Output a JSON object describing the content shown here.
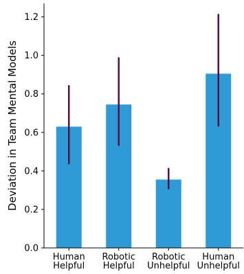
{
  "chart_data": {
    "type": "bar",
    "categories": [
      [
        "Human",
        "Helpful"
      ],
      [
        "Robotic",
        "Helpful"
      ],
      [
        "Robotic",
        "Unhelpful"
      ],
      [
        "Human",
        "Unhelpful"
      ]
    ],
    "values": [
      0.63,
      0.745,
      0.355,
      0.905
    ],
    "error_low": [
      0.435,
      0.53,
      0.305,
      0.63
    ],
    "error_high": [
      0.845,
      0.99,
      0.415,
      1.215
    ],
    "title": "",
    "xlabel": "",
    "ylabel": "Deviation in Team Mental Models",
    "ylim": [
      0,
      1.27
    ],
    "yticks": [
      0.0,
      0.2,
      0.4,
      0.6,
      0.8,
      1.0,
      1.2
    ],
    "ytick_labels": [
      "0.0",
      "0.2",
      "0.4",
      "0.6",
      "0.8",
      "1.0",
      "1.2"
    ],
    "grid": false,
    "legend": "none",
    "bar_color": "#2e9bd6",
    "error_color": "#5a0f45"
  }
}
